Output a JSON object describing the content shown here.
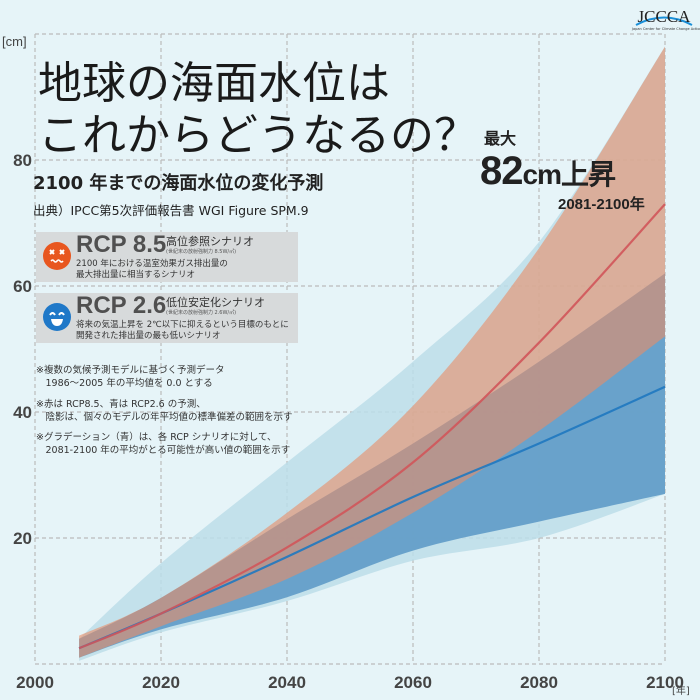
{
  "header": {
    "title_line1": "地球の海面水位は",
    "title_line2": "これからどうなるの？",
    "subtitle": "2100 年までの海面水位の変化予測",
    "source": "出典）IPCC第5次評価報告書 WGI Figure SPM.9",
    "logo_text": "JCCCA",
    "logo_subtext": "Japan Center for Climate Change Actions"
  },
  "highlight": {
    "label": "最大",
    "value": "82",
    "unit": "cm",
    "suffix": "上昇",
    "period": "2081-2100年"
  },
  "scenarios": [
    {
      "code": "RCP 8.5",
      "name": "高位参照シナリオ",
      "sub": "(世紀末の放射強制力 8.5W/㎡)",
      "desc1": "2100 年における温室効果ガス排出量の",
      "desc2": "最大排出量に相当するシナリオ",
      "icon": "dizzy-face-icon",
      "color": "#e8561f"
    },
    {
      "code": "RCP 2.6",
      "name": "低位安定化シナリオ",
      "sub": "(世紀末の放射強制力 2.6W/㎡)",
      "desc1": "将来の気温上昇を 2℃以下に抑えるという目標のもとに",
      "desc2": "開発された排出量の最も低いシナリオ",
      "icon": "smiling-face-icon",
      "color": "#1f78c8"
    }
  ],
  "notes": [
    {
      "l1": "※複数の気候予測モデルに基づく予測データ",
      "l2": "　1986〜2005 年の平均値を 0.0 とする"
    },
    {
      "l1": "※赤は RCP8.5、青は RCP2.6 の予測、",
      "l2": "　陰影は、個々のモデルの年平均値の標準偏差の範囲を示す"
    },
    {
      "l1": "※グラデーション（青）は、各 RCP シナリオに対して、",
      "l2": "　2081-2100 年の平均がとる可能性が高い値の範囲を示す"
    }
  ],
  "chart_data": {
    "type": "area",
    "xlabel": "[年]",
    "ylabel": "[cm]",
    "xlim": [
      2000,
      2100
    ],
    "ylim": [
      0,
      100
    ],
    "xticks": [
      "2000",
      "2020",
      "2040",
      "2060",
      "2080",
      "2100"
    ],
    "yticks": [
      "20",
      "40",
      "60",
      "80"
    ],
    "grid": true,
    "x": [
      2007,
      2020,
      2040,
      2060,
      2080,
      2100
    ],
    "series": [
      {
        "name": "RCP8.5 mean",
        "values": [
          2.5,
          8,
          18.5,
          32,
          51,
          73
        ],
        "color": "#d0555a"
      },
      {
        "name": "RCP8.5 range upper",
        "values": [
          4.5,
          10.5,
          24,
          41,
          66,
          98
        ],
        "color": "#ea8c66"
      },
      {
        "name": "RCP8.5 range lower",
        "values": [
          1,
          6,
          13.5,
          24,
          37,
          52
        ]
      },
      {
        "name": "RCP2.6 mean",
        "values": [
          2.5,
          8,
          17,
          26.5,
          35,
          44
        ],
        "color": "#1f78c0"
      },
      {
        "name": "RCP2.6 range upper",
        "values": [
          4,
          10.5,
          23,
          35,
          48,
          62
        ]
      },
      {
        "name": "RCP2.6 range lower",
        "values": [
          1,
          5.5,
          10.6,
          18,
          22.6,
          27
        ],
        "color": "#5f9bc8"
      },
      {
        "name": "Likely range upper",
        "values": [
          4,
          16,
          32,
          48,
          67,
          98
        ],
        "color": "#bcdde9"
      },
      {
        "name": "Likely range lower",
        "values": [
          0.5,
          5,
          10,
          16.4,
          20,
          27
        ]
      }
    ]
  }
}
